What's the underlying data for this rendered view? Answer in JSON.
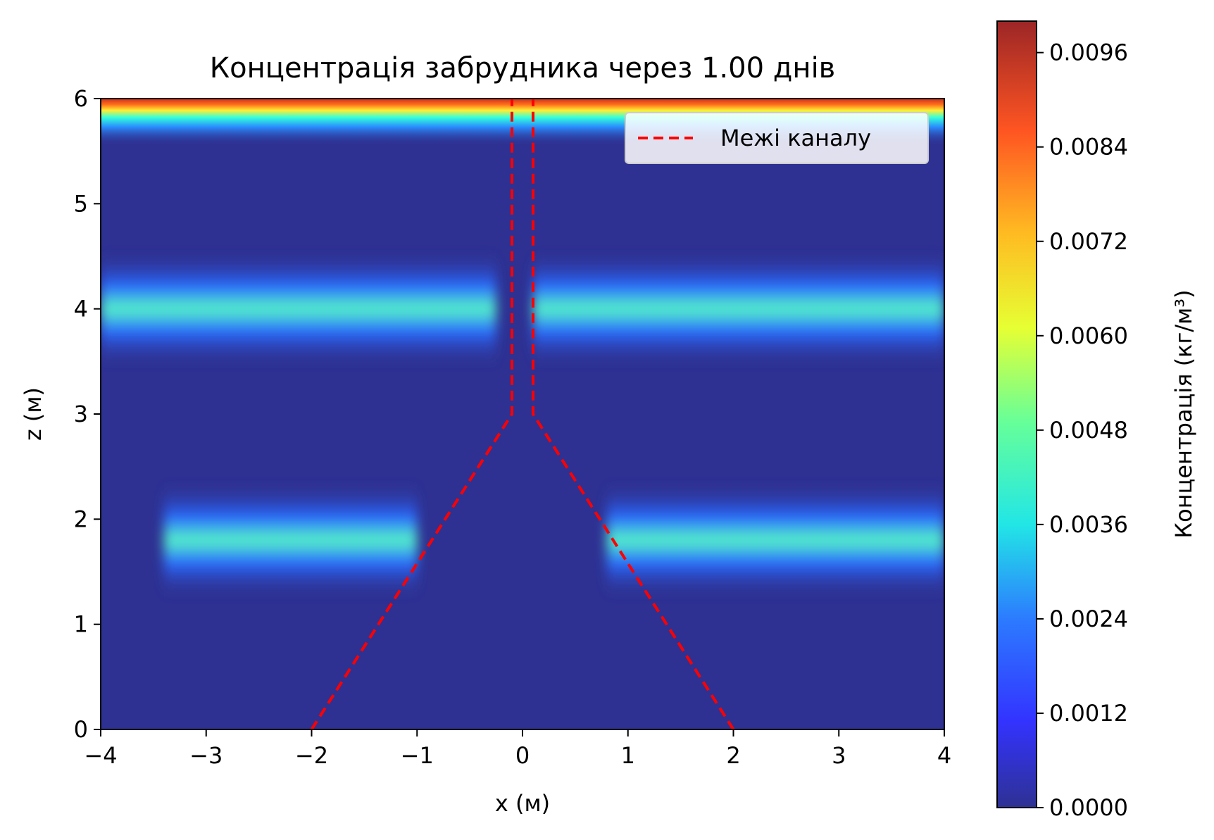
{
  "chart_data": {
    "type": "heatmap",
    "title": "Концентрація забрудника через 1.00 днів",
    "xlabel": "x (м)",
    "ylabel": "z (м)",
    "xlim": [
      -4,
      4
    ],
    "ylim": [
      0,
      6
    ],
    "x_ticks": [
      -4,
      -3,
      -2,
      -1,
      0,
      1,
      2,
      3,
      4
    ],
    "x_tick_labels": [
      "−4",
      "−3",
      "−2",
      "−1",
      "0",
      "1",
      "2",
      "3",
      "4"
    ],
    "y_ticks": [
      0,
      1,
      2,
      3,
      4,
      5,
      6
    ],
    "y_tick_labels": [
      "0",
      "1",
      "2",
      "3",
      "4",
      "5",
      "6"
    ],
    "grid": false,
    "colormap": "jet",
    "colorbar": {
      "label": "Концентрація (кг/м³)",
      "range": [
        0,
        0.01
      ],
      "ticks": [
        0,
        0.0012,
        0.0024,
        0.0036,
        0.0048,
        0.006,
        0.0072,
        0.0084,
        0.0096
      ],
      "tick_labels": [
        "0.0000",
        "0.0012",
        "0.0024",
        "0.0036",
        "0.0048",
        "0.0060",
        "0.0072",
        "0.0084",
        "0.0096"
      ]
    },
    "legend": {
      "placement": "top-right",
      "entries": [
        {
          "label": "Межі каналу",
          "color": "#ff0000",
          "style": "dashed"
        }
      ]
    },
    "channel_boundary": {
      "color": "#ff0000",
      "left": {
        "x": [
          -2.0,
          -0.1,
          -0.1
        ],
        "z": [
          0,
          3,
          6
        ]
      },
      "right": {
        "x": [
          2.0,
          0.1,
          0.1
        ],
        "z": [
          0,
          3,
          6
        ]
      }
    },
    "concentration_features": [
      {
        "region": "surface",
        "z": 6.0,
        "x_range": [
          -4,
          4
        ],
        "peak": 0.0095
      },
      {
        "region": "layer",
        "z": 4.0,
        "x_range": [
          -4,
          -0.25
        ],
        "peak": 0.004
      },
      {
        "region": "layer",
        "z": 4.0,
        "x_range": [
          0.1,
          4
        ],
        "peak": 0.0043
      },
      {
        "region": "layer",
        "z": 1.8,
        "x_range": [
          -3.4,
          -1.0
        ],
        "peak": 0.004
      },
      {
        "region": "layer",
        "z": 1.8,
        "x_range": [
          0.8,
          4
        ],
        "peak": 0.0042
      }
    ]
  }
}
